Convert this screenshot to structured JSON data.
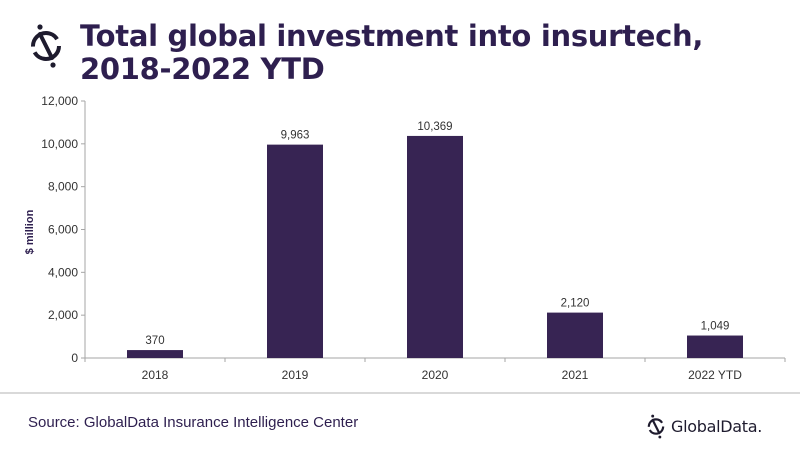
{
  "header": {
    "title": "Total global investment into insurtech, 2018-2022 YTD",
    "logo_icon": "globaldata-mark-icon"
  },
  "footer": {
    "source": "Source: GlobalData Insurance Intelligence Center",
    "brand": "GlobalData."
  },
  "colors": {
    "bar": "#372453",
    "title": "#2e1f4f",
    "axis": "#a6a6a6"
  },
  "chart_data": {
    "type": "bar",
    "title": "Total global investment into insurtech, 2018-2022 YTD",
    "xlabel": "",
    "ylabel": "$ million",
    "categories": [
      "2018",
      "2019",
      "2020",
      "2021",
      "2022 YTD"
    ],
    "values": [
      370,
      9963,
      10369,
      2120,
      1049
    ],
    "data_labels": [
      "370",
      "9,963",
      "10,369",
      "2,120",
      "1,049"
    ],
    "ylim": [
      0,
      12000
    ],
    "yticks": [
      0,
      2000,
      4000,
      6000,
      8000,
      10000,
      12000
    ],
    "ytick_labels": [
      "0",
      "2,000",
      "4,000",
      "6,000",
      "8,000",
      "10,000",
      "12,000"
    ],
    "grid": false,
    "legend": "none"
  }
}
